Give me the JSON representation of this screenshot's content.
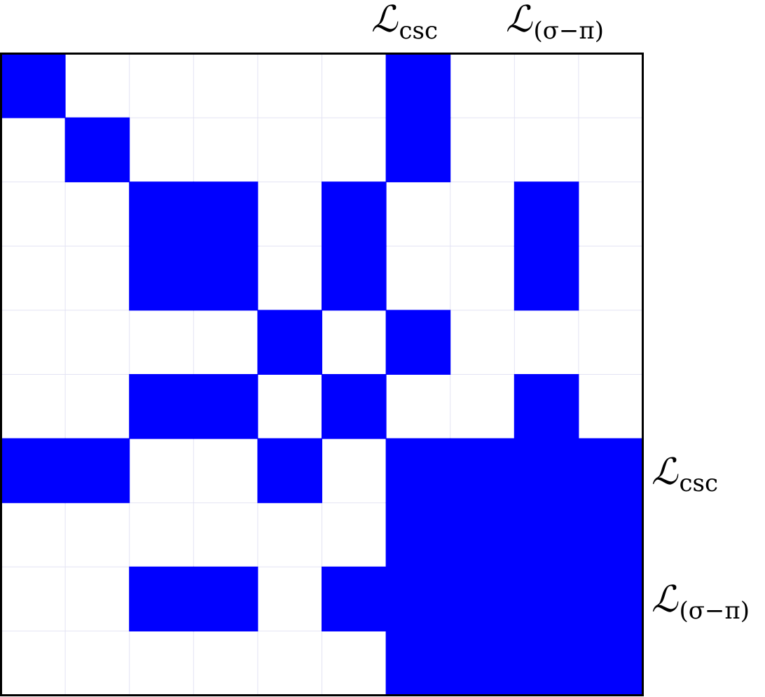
{
  "matrix": {
    "size": 10,
    "on_color": "#0000ff",
    "rows": [
      [
        1,
        0,
        0,
        0,
        0,
        0,
        1,
        0,
        0,
        0
      ],
      [
        0,
        1,
        0,
        0,
        0,
        0,
        1,
        0,
        0,
        0
      ],
      [
        0,
        0,
        1,
        1,
        0,
        1,
        0,
        0,
        1,
        0
      ],
      [
        0,
        0,
        1,
        1,
        0,
        1,
        0,
        0,
        1,
        0
      ],
      [
        0,
        0,
        0,
        0,
        1,
        0,
        1,
        0,
        0,
        0
      ],
      [
        0,
        0,
        1,
        1,
        0,
        1,
        0,
        0,
        1,
        0
      ],
      [
        1,
        1,
        0,
        0,
        1,
        0,
        1,
        1,
        1,
        1
      ],
      [
        0,
        0,
        0,
        0,
        0,
        0,
        1,
        1,
        1,
        1
      ],
      [
        0,
        0,
        1,
        1,
        0,
        1,
        1,
        1,
        1,
        1
      ],
      [
        0,
        0,
        0,
        0,
        0,
        0,
        1,
        1,
        1,
        1
      ]
    ]
  },
  "labels": {
    "top_csc": {
      "symbol": "ℒ",
      "sub": "csc"
    },
    "top_sigma_pi": {
      "symbol": "ℒ",
      "sub": "(σ−π)"
    },
    "right_csc": {
      "symbol": "ℒ",
      "sub": "csc"
    },
    "right_sigma_pi": {
      "symbol": "ℒ",
      "sub": "(σ−π)"
    }
  }
}
